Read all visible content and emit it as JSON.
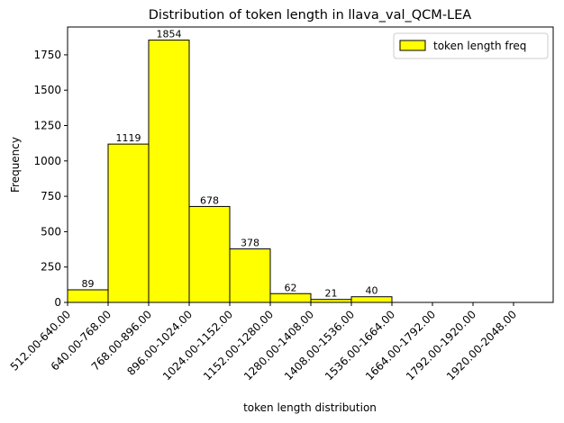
{
  "chart_data": {
    "type": "bar",
    "title": "Distribution of token length in llava_val_QCM-LEA",
    "xlabel": "token length distribution",
    "ylabel": "Frequency",
    "categories": [
      "512.00-640.00",
      "640.00-768.00",
      "768.00-896.00",
      "896.00-1024.00",
      "1024.00-1152.00",
      "1152.00-1280.00",
      "1280.00-1408.00",
      "1408.00-1536.00",
      "1536.00-1664.00",
      "1664.00-1792.00",
      "1792.00-1920.00",
      "1920.00-2048.00"
    ],
    "series": [
      {
        "name": "token length freq",
        "values": [
          89,
          1119,
          1854,
          678,
          378,
          62,
          21,
          40,
          0,
          0,
          0,
          0
        ],
        "color": "#ffff00",
        "edge_color": "#000000"
      }
    ],
    "data_labels": [
      "89",
      "1119",
      "1854",
      "678",
      "378",
      "62",
      "21",
      "40"
    ],
    "yticks": [
      0,
      250,
      500,
      750,
      1000,
      1250,
      1500,
      1750
    ],
    "ylim": [
      0,
      1946.7
    ],
    "grid": false,
    "legend_position": "top-right"
  }
}
